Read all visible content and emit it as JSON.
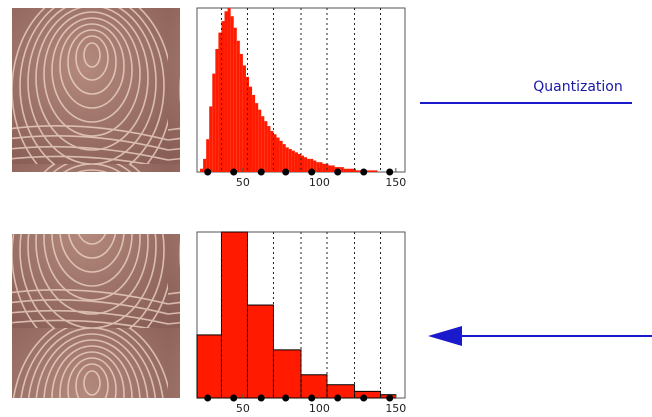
{
  "diagram": {
    "label": "Quantization"
  },
  "chart_data": [
    {
      "type": "histogram",
      "color": "#ff1a00",
      "bins": [
        20,
        22,
        24,
        26,
        28,
        30,
        32,
        34,
        36,
        38,
        40,
        42,
        44,
        46,
        48,
        50,
        52,
        54,
        56,
        58,
        60,
        62,
        64,
        66,
        68,
        70,
        72,
        74,
        76,
        78,
        80,
        82,
        84,
        86,
        88,
        90,
        92,
        94,
        96,
        98,
        100,
        102,
        104,
        106,
        108,
        110,
        112,
        114,
        116,
        118,
        120,
        122,
        124,
        126,
        128,
        130,
        132,
        134,
        136,
        138,
        140,
        142,
        144,
        146,
        148,
        150
      ],
      "values": [
        0,
        2,
        8,
        20,
        40,
        60,
        75,
        85,
        92,
        98,
        100,
        95,
        88,
        80,
        72,
        65,
        58,
        52,
        47,
        42,
        38,
        34,
        31,
        28,
        25,
        23,
        21,
        19,
        17,
        15,
        14,
        13,
        12,
        11,
        10,
        9,
        8,
        8,
        7,
        6,
        6,
        5,
        5,
        4,
        4,
        3,
        3,
        3,
        2,
        2,
        2,
        2,
        1,
        1,
        1,
        1,
        1,
        1,
        1,
        0,
        0,
        0,
        0,
        0,
        0
      ],
      "thresholds": [
        36,
        53,
        70,
        88,
        105,
        123,
        140
      ],
      "levels": [
        27,
        44,
        62,
        78,
        95,
        112,
        129,
        146
      ],
      "xlim": [
        20,
        156
      ],
      "xticks": [
        50,
        100,
        150
      ],
      "ylim": [
        0,
        100
      ]
    },
    {
      "type": "histogram",
      "color": "#ff1a00",
      "bins": [
        20,
        36,
        53,
        70,
        88,
        105,
        123,
        140,
        150
      ],
      "values": [
        38,
        100,
        56,
        29,
        14,
        8,
        4,
        2
      ],
      "thresholds": [
        36,
        53,
        70,
        88,
        105,
        123,
        140
      ],
      "levels": [
        27,
        44,
        62,
        78,
        95,
        112,
        129,
        146
      ],
      "xlim": [
        20,
        156
      ],
      "xticks": [
        50,
        100,
        150
      ],
      "ylim": [
        0,
        100
      ]
    }
  ]
}
